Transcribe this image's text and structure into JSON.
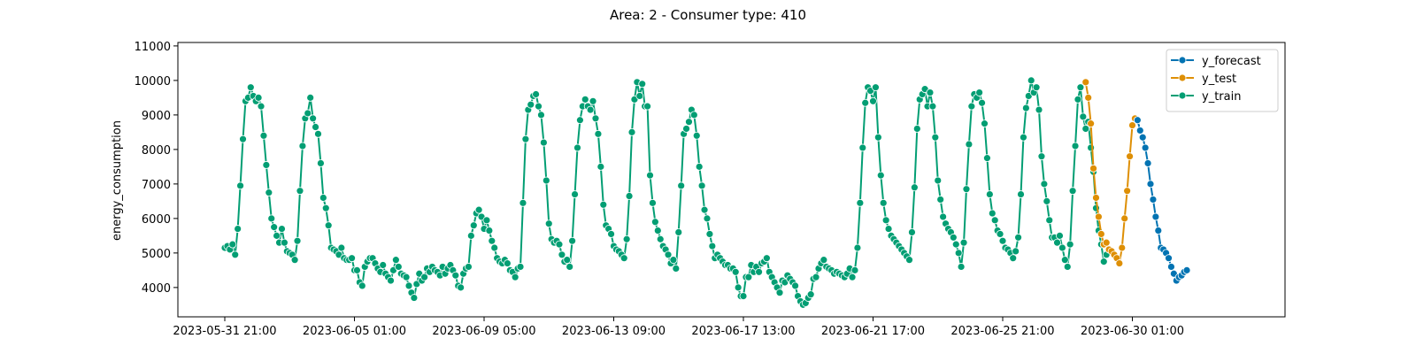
{
  "chart_data": {
    "type": "line",
    "title": "Area: 2 - Consumer type: 410",
    "xlabel": "",
    "ylabel": "energy_consumption",
    "ylim": [
      3150,
      11100
    ],
    "x_start": "2023-05-31 21:00",
    "x_step_hours": 2,
    "x_ticks": [
      "2023-05-31 21:00",
      "2023-06-05 01:00",
      "2023-06-09 05:00",
      "2023-06-13 09:00",
      "2023-06-17 13:00",
      "2023-06-21 17:00",
      "2023-06-25 21:00",
      "2023-06-30 01:00"
    ],
    "y_ticks": [
      4000,
      5000,
      6000,
      7000,
      8000,
      9000,
      10000,
      11000
    ],
    "grid": false,
    "legend_position": "top-right",
    "series": [
      {
        "name": "y_forecast",
        "color": "#0173b2",
        "start_index": 352,
        "values": [
          8850,
          8550,
          8350,
          8050,
          7600,
          7000,
          6550,
          6050,
          5650,
          5150,
          5100,
          5000,
          4850,
          4600,
          4400,
          4200,
          4300,
          4350,
          4450,
          4500
        ]
      },
      {
        "name": "y_test",
        "color": "#de8f05",
        "start_index": 332,
        "values": [
          9950,
          9500,
          8750,
          7450,
          6600,
          6050,
          5550,
          5250,
          5300,
          5100,
          5050,
          4950,
          4850,
          4700,
          5150,
          6000,
          6800,
          7800,
          8700,
          8900,
          8850
        ]
      },
      {
        "name": "y_train",
        "color": "#029e73",
        "start_index": 0,
        "values": [
          5150,
          5200,
          5100,
          5250,
          4950,
          5700,
          6950,
          8300,
          9400,
          9500,
          9800,
          9550,
          9400,
          9500,
          9250,
          8400,
          7550,
          6750,
          6000,
          5750,
          5500,
          5300,
          5700,
          5300,
          5050,
          5000,
          4950,
          4800,
          5350,
          6800,
          8100,
          8900,
          9050,
          9500,
          8900,
          8650,
          8450,
          7600,
          6600,
          6300,
          5800,
          5150,
          5100,
          5050,
          4950,
          5150,
          4850,
          4800,
          4800,
          4850,
          4500,
          4500,
          4150,
          4050,
          4600,
          4750,
          4850,
          4850,
          4700,
          4550,
          4450,
          4650,
          4400,
          4300,
          4200,
          4500,
          4800,
          4600,
          4400,
          4350,
          4300,
          4050,
          3850,
          3700,
          4100,
          4400,
          4200,
          4300,
          4550,
          4450,
          4600,
          4500,
          4450,
          4350,
          4600,
          4400,
          4550,
          4650,
          4500,
          4350,
          4050,
          4000,
          4400,
          4550,
          4600,
          5500,
          5800,
          6150,
          6250,
          6050,
          5700,
          5950,
          5650,
          5350,
          5150,
          4850,
          4750,
          4700,
          4800,
          4700,
          4500,
          4450,
          4300,
          4550,
          4600,
          6450,
          8300,
          9150,
          9300,
          9550,
          9600,
          9250,
          9000,
          8200,
          7100,
          5850,
          5400,
          5300,
          5350,
          5250,
          4950,
          4750,
          4800,
          4600,
          5350,
          6700,
          8050,
          8850,
          9250,
          9450,
          9250,
          9150,
          9400,
          8900,
          8450,
          7500,
          6400,
          5800,
          5700,
          5550,
          5200,
          5100,
          5050,
          4950,
          4850,
          5400,
          6650,
          8500,
          9450,
          9950,
          9550,
          9900,
          9250,
          9250,
          7250,
          6450,
          5900,
          5650,
          5400,
          5200,
          5100,
          4950,
          4700,
          4800,
          4550,
          5600,
          6950,
          8450,
          8600,
          8800,
          9150,
          9000,
          8400,
          7500,
          6950,
          6250,
          6000,
          5550,
          5200,
          4850,
          4950,
          4850,
          4750,
          4650,
          4650,
          4550,
          4550,
          4450,
          4000,
          3750,
          3750,
          4300,
          4300,
          4650,
          4450,
          4600,
          4450,
          4700,
          4750,
          4850,
          4450,
          4300,
          4150,
          4000,
          3850,
          4200,
          4150,
          4350,
          4250,
          4150,
          4050,
          3750,
          3600,
          3500,
          3550,
          3700,
          3800,
          4250,
          4300,
          4550,
          4700,
          4800,
          4600,
          4550,
          4500,
          4400,
          4450,
          4400,
          4350,
          4300,
          4400,
          4550,
          4300,
          4500,
          5150,
          6450,
          8050,
          9350,
          9800,
          9700,
          9400,
          9800,
          8350,
          7250,
          6450,
          5950,
          5700,
          5500,
          5400,
          5300,
          5200,
          5100,
          5000,
          4900,
          4800,
          5600,
          6900,
          8600,
          9450,
          9600,
          9750,
          9250,
          9650,
          9250,
          8350,
          7100,
          6550,
          6050,
          5850,
          5700,
          5600,
          5450,
          5250,
          5000,
          4600,
          5300,
          6850,
          8150,
          9250,
          9600,
          9500,
          9650,
          9350,
          8750,
          7750,
          6700,
          6150,
          5950,
          5650,
          5550,
          5350,
          5150,
          5100,
          5000,
          4850,
          5050,
          5450,
          6700,
          8350,
          9200,
          9550,
          10000,
          9650,
          9800,
          9150,
          7800,
          7000,
          6500,
          5950,
          5450,
          5450,
          5300,
          5500,
          5150,
          4800,
          4600,
          5250,
          6800,
          8100,
          9450,
          9800,
          8950,
          8600,
          8800,
          8050,
          7350,
          6300,
          5650,
          5250,
          4750,
          4950
        ]
      }
    ]
  }
}
